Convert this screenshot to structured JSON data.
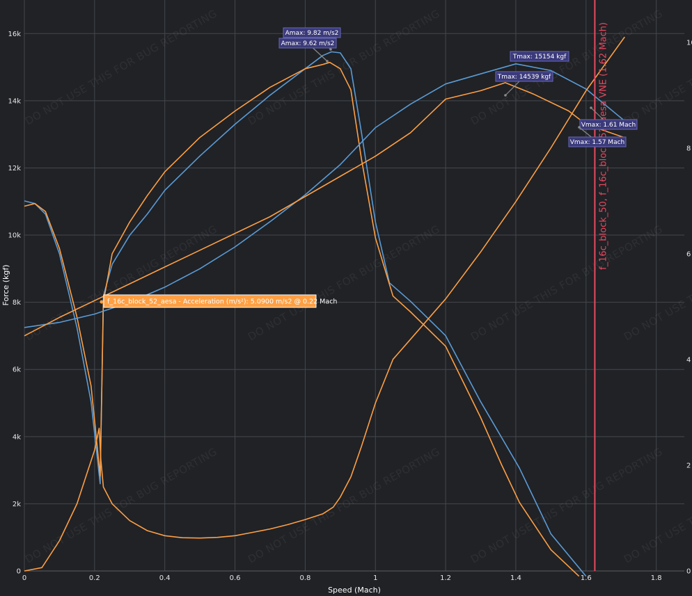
{
  "chart_data": {
    "type": "line",
    "title": "",
    "xlabel": "Speed (Mach)",
    "ylabel": "Force (kgf)",
    "xlim": [
      0,
      1.88
    ],
    "ylim": [
      0,
      17000
    ],
    "y2lim": [
      0,
      10.8
    ],
    "grid": true,
    "x_ticks": [
      "0",
      "0.2",
      "0.4",
      "0.6",
      "0.8",
      "1",
      "1.2",
      "1.4",
      "1.6",
      "1.8"
    ],
    "y_ticks": [
      "0",
      "2k",
      "4k",
      "6k",
      "8k",
      "10k",
      "12k",
      "14k",
      "16k"
    ],
    "y2_ticks": [
      "0",
      "2",
      "4",
      "6",
      "8",
      "10"
    ],
    "series": [
      {
        "color": "#5b9bd5",
        "axis": "y2",
        "x": [
          0.0,
          0.03,
          0.06,
          0.1,
          0.15,
          0.19,
          0.216,
          0.225,
          0.25,
          0.3,
          0.35,
          0.4,
          0.5,
          0.6,
          0.7,
          0.8,
          0.85,
          0.875,
          0.9,
          0.93,
          0.96,
          1.0,
          1.04,
          1.1,
          1.2,
          1.3,
          1.41,
          1.5,
          1.6
        ],
        "values": [
          7.0,
          6.95,
          6.75,
          6.0,
          4.6,
          3.2,
          1.65,
          5.2,
          5.8,
          6.35,
          6.75,
          7.2,
          7.85,
          8.45,
          9.0,
          9.5,
          9.75,
          9.82,
          9.8,
          9.5,
          8.3,
          6.6,
          5.45,
          5.1,
          4.45,
          3.2,
          1.95,
          0.7,
          -0.1
        ]
      },
      {
        "color": "#ff9f43",
        "axis": "y2",
        "x": [
          0.0,
          0.03,
          0.06,
          0.1,
          0.15,
          0.19,
          0.216,
          0.225,
          0.25,
          0.3,
          0.35,
          0.4,
          0.5,
          0.6,
          0.7,
          0.8,
          0.85,
          0.87,
          0.9,
          0.93,
          0.96,
          1.0,
          1.05,
          1.1,
          1.2,
          1.3,
          1.36,
          1.41,
          1.5,
          1.58
        ],
        "values": [
          6.9,
          6.95,
          6.8,
          6.1,
          4.8,
          3.5,
          1.8,
          5.09,
          6.0,
          6.6,
          7.1,
          7.55,
          8.2,
          8.7,
          9.15,
          9.5,
          9.58,
          9.62,
          9.5,
          9.1,
          7.8,
          6.3,
          5.2,
          4.9,
          4.25,
          2.9,
          2.0,
          1.3,
          0.4,
          -0.1
        ]
      },
      {
        "color": "#5b9bd5",
        "axis": "y",
        "x": [
          0.0,
          0.1,
          0.2,
          0.3,
          0.4,
          0.5,
          0.6,
          0.7,
          0.8,
          0.9,
          1.0,
          1.1,
          1.2,
          1.3,
          1.4,
          1.5,
          1.6,
          1.71
        ],
        "values": [
          7250,
          7400,
          7650,
          8000,
          8450,
          9000,
          9650,
          10400,
          11200,
          12100,
          13200,
          13900,
          14500,
          14800,
          15100,
          14900,
          14350,
          13400
        ]
      },
      {
        "color": "#ff9f43",
        "axis": "y",
        "x": [
          0.0,
          0.1,
          0.2,
          0.3,
          0.4,
          0.5,
          0.6,
          0.7,
          0.8,
          0.9,
          1.0,
          1.1,
          1.2,
          1.3,
          1.37,
          1.45,
          1.55,
          1.6,
          1.71
        ],
        "values": [
          7000,
          7550,
          8050,
          8550,
          9050,
          9550,
          10050,
          10550,
          11150,
          11750,
          12350,
          13050,
          14050,
          14300,
          14539,
          14200,
          13700,
          13300,
          12900
        ]
      },
      {
        "color": "#ff9f43",
        "axis": "y",
        "x": [
          0.0,
          0.05,
          0.1,
          0.15,
          0.2,
          0.213,
          0.218,
          0.225,
          0.25,
          0.3,
          0.35,
          0.4,
          0.45,
          0.5,
          0.55,
          0.6,
          0.65,
          0.7,
          0.75,
          0.8,
          0.85,
          0.88,
          0.9,
          0.93,
          0.96,
          1.0,
          1.05,
          1.1,
          1.2,
          1.3,
          1.4,
          1.5,
          1.6,
          1.71
        ],
        "values": [
          0,
          100,
          900,
          2000,
          3600,
          4250,
          3300,
          2500,
          2000,
          1500,
          1200,
          1050,
          990,
          980,
          1000,
          1050,
          1150,
          1250,
          1380,
          1530,
          1700,
          1900,
          2200,
          2800,
          3700,
          5000,
          6300,
          6900,
          8100,
          9500,
          11000,
          12600,
          14300,
          15900
        ]
      }
    ],
    "vertical_line": {
      "x": 1.625,
      "color": "#e84a5f",
      "label": "f_16c_block_50, f_16c_block_52_aesa VNE (1.62 Mach)"
    },
    "annotations": [
      {
        "text": "Amax: 9.82 m/s2",
        "x": 0.875,
        "y2": 9.82
      },
      {
        "text": "Amax: 9.62 m/s2",
        "x": 0.87,
        "y2": 9.62
      },
      {
        "text": "Tmax: 15154 kgf",
        "x": 1.41,
        "y": 15154
      },
      {
        "text": "Tmax: 14539 kgf",
        "x": 1.37,
        "y": 14539
      },
      {
        "text": "Vmax: 1.61 Mach",
        "x": 1.61,
        "y": 14200
      },
      {
        "text": "Vmax: 1.57 Mach",
        "x": 1.57,
        "y": 13500
      }
    ],
    "hover_label": {
      "text": "f_16c_block_52_aesa - Acceleration (m/s²): 5.0900 m/s2 @ 0.22 Mach",
      "x": 0.22,
      "y2": 5.09
    },
    "watermark": "DO NOT USE THIS FOR BUG REPORTING"
  }
}
